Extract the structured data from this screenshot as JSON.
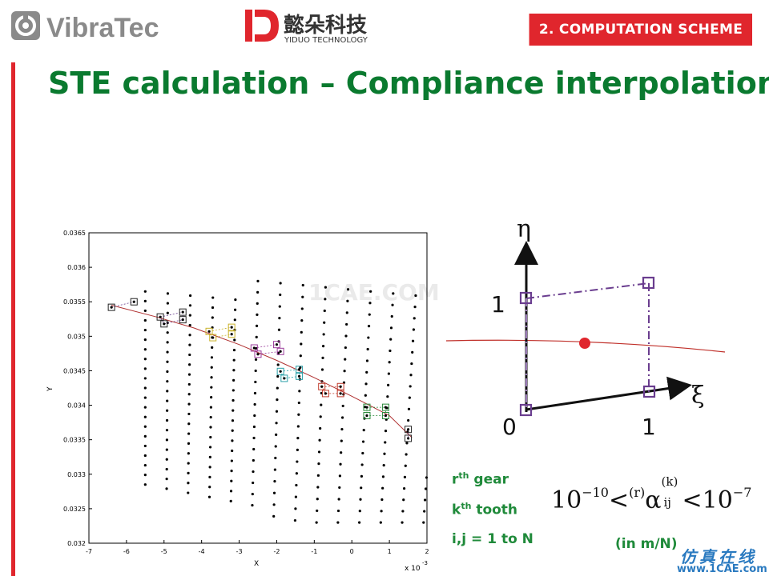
{
  "header": {
    "vibratec_logo": "VibraTec",
    "yiduo_logo_cn": "懿朵科技",
    "yiduo_logo_en": "YIDUO TECHNOLOGY",
    "section": "2. COMPUTATION SCHEME"
  },
  "title": "STE calculation – Compliance interpolation",
  "colors": {
    "accent_red": "#e0262d",
    "title_green": "#0a7a2f",
    "label_green": "#1f8a3a",
    "scheme_purple": "#6a3d8f"
  },
  "chart_data": {
    "type": "scatter",
    "xlabel": "X",
    "ylabel": "Y",
    "x_multiplier": "x 10",
    "x_multiplier_exp": "-3",
    "xlim": [
      -7,
      2
    ],
    "ylim": [
      0.032,
      0.0365
    ],
    "x_ticks": [
      "-7",
      "-6",
      "-5",
      "-4",
      "-3",
      "-2",
      "-1",
      "0",
      "1",
      "2"
    ],
    "y_ticks": [
      "0.032",
      "0.0325",
      "0.033",
      "0.0335",
      "0.034",
      "0.0345",
      "0.035",
      "0.0355",
      "0.036",
      "0.0365"
    ],
    "grid_lines": 14,
    "grid_points_per_line": 21,
    "contact_line": [
      [
        -6.4,
        0.03545
      ],
      [
        -5.2,
        0.03528
      ],
      [
        -4.2,
        0.03512
      ],
      [
        -3.0,
        0.03488
      ],
      [
        -2.0,
        0.03465
      ],
      [
        -1.0,
        0.0344
      ],
      [
        0.0,
        0.03413
      ],
      [
        1.0,
        0.03385
      ],
      [
        1.6,
        0.03353
      ]
    ],
    "highlight_groups": [
      {
        "color": "#6a3d8f",
        "squares": [
          [
            -6.4,
            0.03542
          ],
          [
            -5.8,
            0.0355
          ]
        ]
      },
      {
        "color": "#6a3d8f",
        "squares": [
          [
            -5.1,
            0.03528
          ],
          [
            -5.0,
            0.03518
          ],
          [
            -4.5,
            0.03535
          ],
          [
            -4.5,
            0.03524
          ]
        ]
      },
      {
        "color": "#c9b22a",
        "squares": [
          [
            -3.8,
            0.03507
          ],
          [
            -3.7,
            0.03498
          ],
          [
            -3.2,
            0.03513
          ],
          [
            -3.2,
            0.03503
          ]
        ]
      },
      {
        "color": "#9b3b9b",
        "squares": [
          [
            -2.6,
            0.03483
          ],
          [
            -2.5,
            0.03474
          ],
          [
            -2.0,
            0.03488
          ],
          [
            -1.9,
            0.03478
          ]
        ]
      },
      {
        "color": "#2aa0a8",
        "squares": [
          [
            -1.9,
            0.03449
          ],
          [
            -1.8,
            0.03439
          ],
          [
            -1.4,
            0.03452
          ],
          [
            -1.4,
            0.03442
          ]
        ]
      },
      {
        "color": "#c03a2a",
        "squares": [
          [
            -0.8,
            0.03427
          ],
          [
            -0.7,
            0.03417
          ],
          [
            -0.3,
            0.03427
          ],
          [
            -0.3,
            0.03417
          ]
        ]
      },
      {
        "color": "#2a8a3a",
        "squares": [
          [
            0.4,
            0.03397
          ],
          [
            0.4,
            0.03385
          ],
          [
            0.9,
            0.03397
          ],
          [
            0.9,
            0.03385
          ]
        ]
      },
      {
        "color": "#6a3d8f",
        "squares": [
          [
            1.5,
            0.03365
          ],
          [
            1.5,
            0.03352
          ]
        ]
      }
    ]
  },
  "scheme": {
    "eta": "η",
    "xi": "ξ",
    "one_y": "1",
    "zero": "0",
    "one_x": "1"
  },
  "labels": {
    "gear_base": "r",
    "gear_sup": "th",
    "gear_text": " gear",
    "tooth_base": "k",
    "tooth_sup": "th",
    "tooth_text": " tooth",
    "ij": "i,j = 1 to N",
    "unit": "(in m/N)"
  },
  "formula": {
    "low_base": "10",
    "low_exp": "−10",
    "lt1": "<",
    "r": "(r)",
    "alpha": "α",
    "k": "(k)",
    "ij": "ij",
    "lt2": "<",
    "high_base": "10",
    "high_exp": "−7"
  },
  "watermark": {
    "chart": "1CAE.COM",
    "cn": "仿真在线",
    "url": "www.1CAE.com"
  }
}
